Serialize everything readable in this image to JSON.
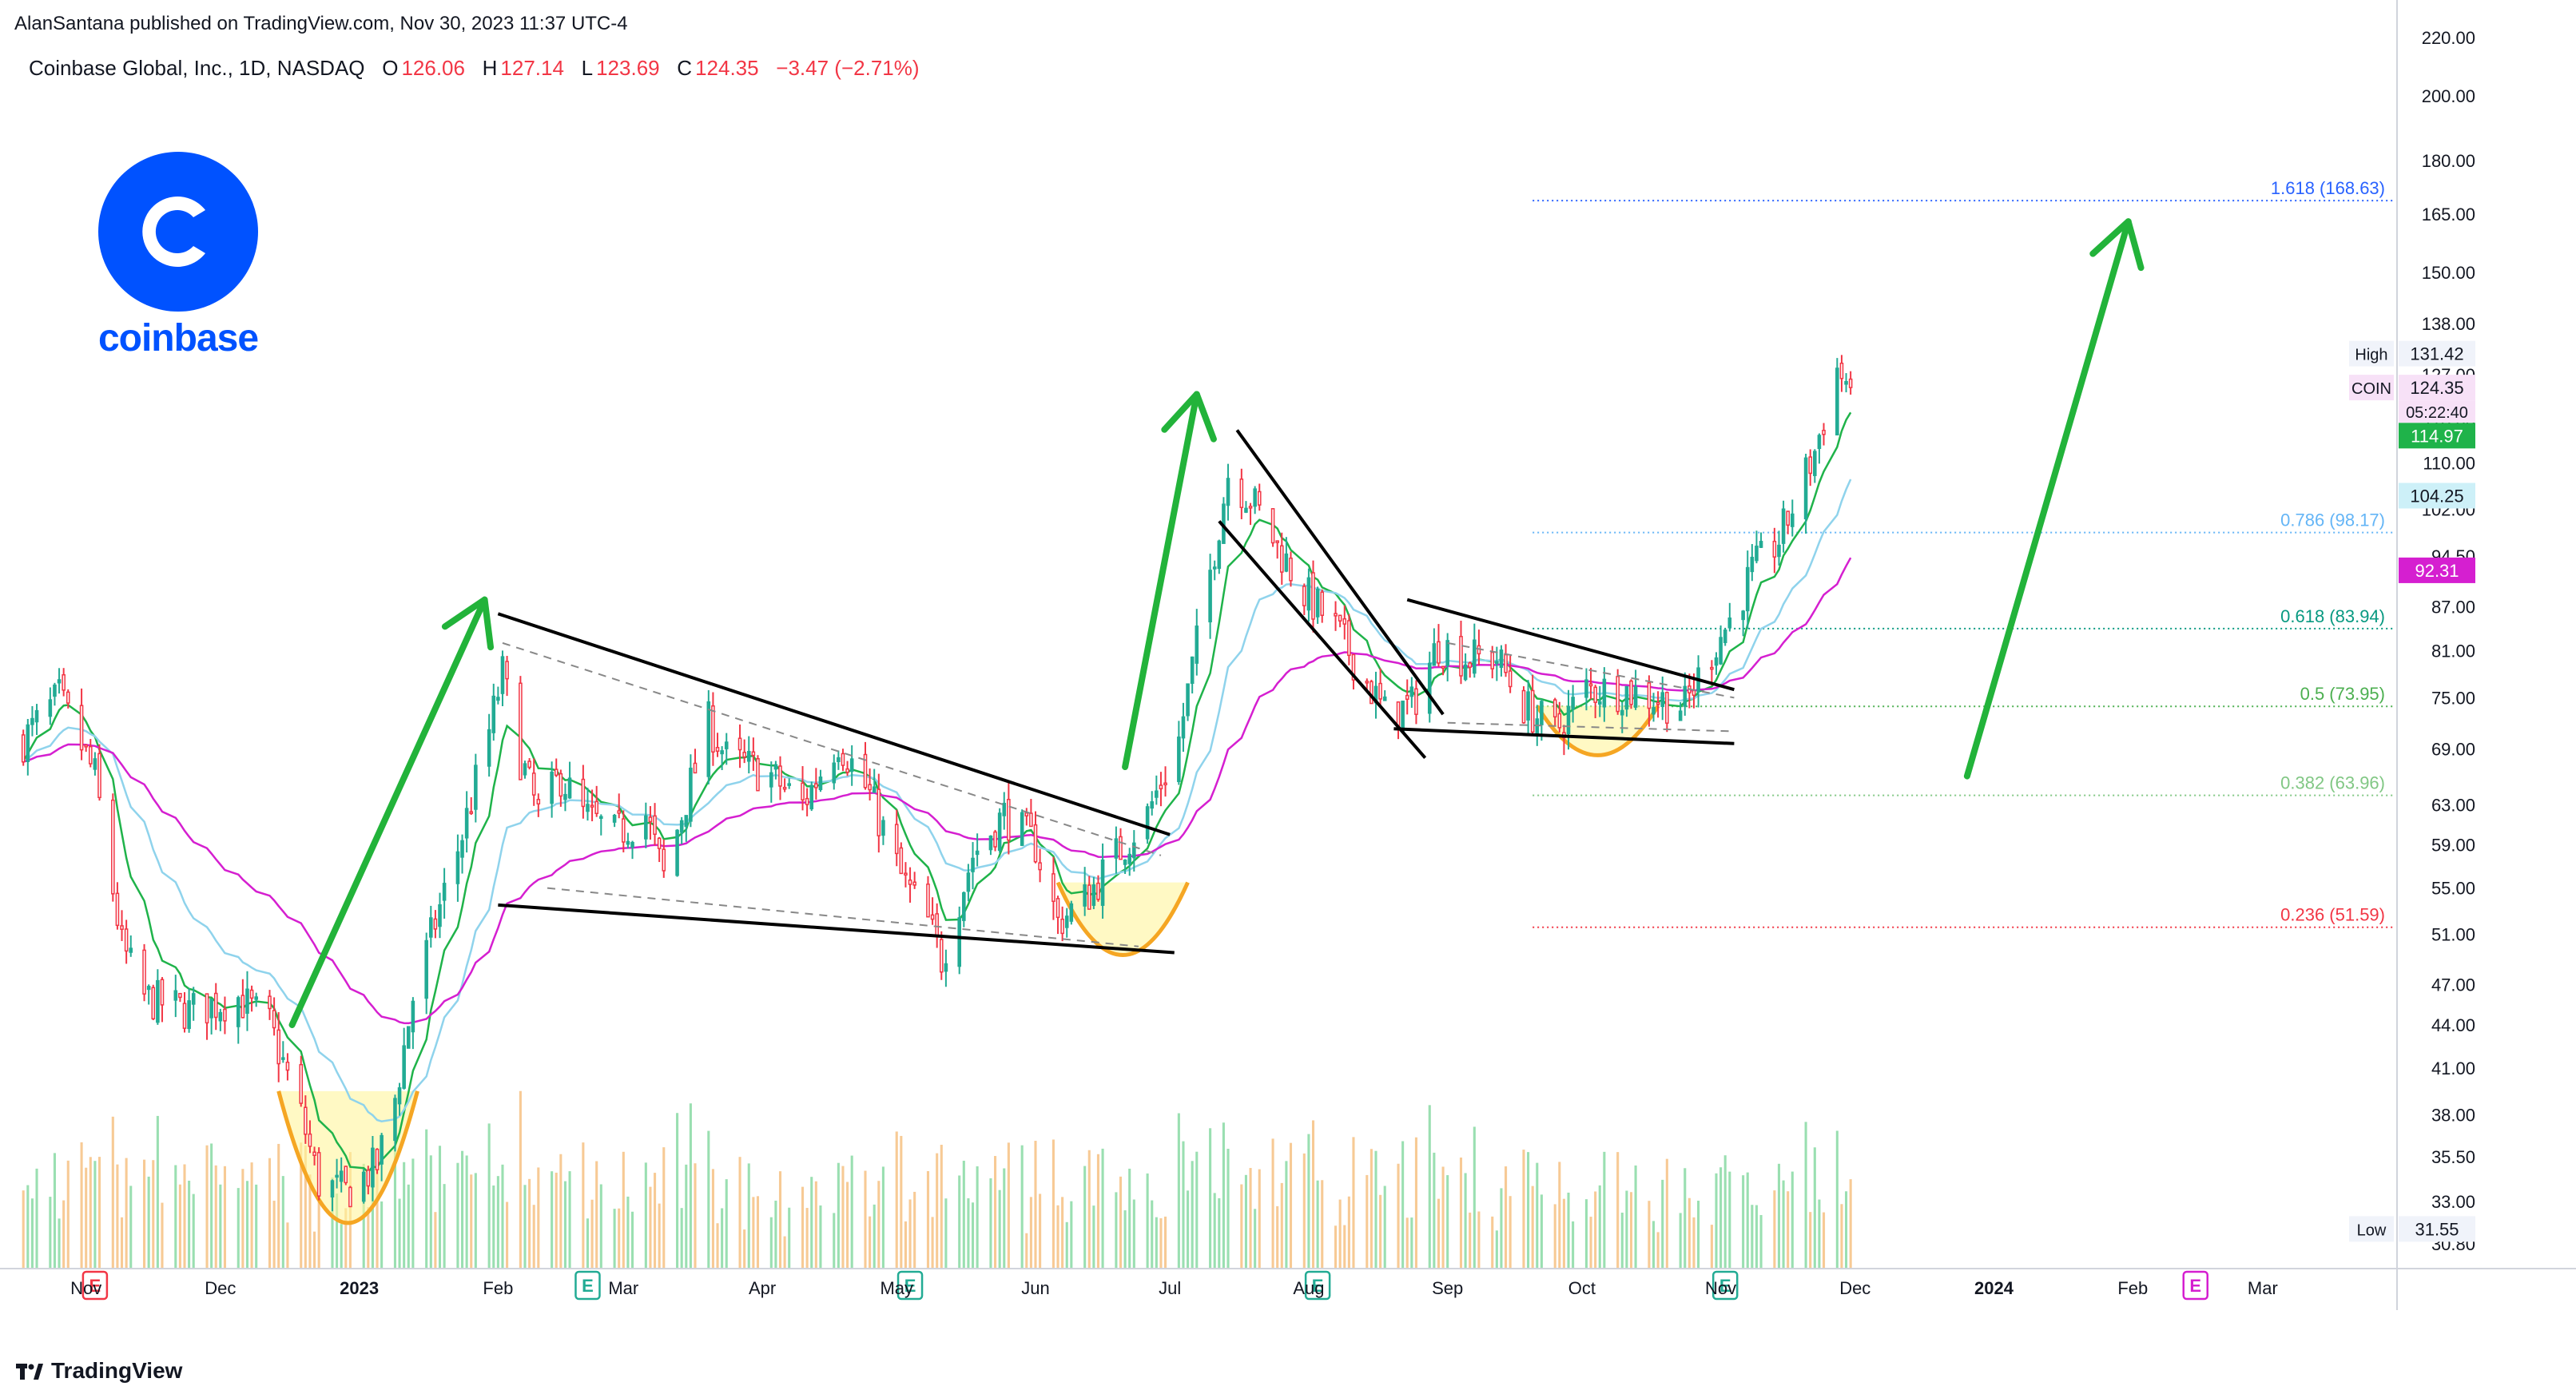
{
  "header": {
    "published": "AlanSantana published on TradingView.com, Nov 30, 2023 11:37 UTC-4",
    "symbol": "Coinbase Global, Inc., 1D, NASDAQ",
    "o_label": "O",
    "o_value": "126.06",
    "h_label": "H",
    "h_value": "127.14",
    "l_label": "L",
    "l_value": "123.69",
    "c_label": "C",
    "c_value": "124.35",
    "change": "−3.47 (−2.71%)"
  },
  "logo": {
    "wordmark": "coinbase",
    "icon": "coinbase-c-logo"
  },
  "footer": {
    "brand": "TradingView",
    "icon": "tradingview-logo-icon"
  },
  "colors": {
    "up": "#22ab94",
    "down": "#f23645",
    "ema_fast": "#1fb34a",
    "ema_mid": "#8fd3ec",
    "ema_slow": "#d51fd0",
    "arrow": "#22b33a",
    "brand": "#0052ff"
  },
  "chart_data": {
    "type": "candlestick",
    "symbol": "COIN",
    "title": "Coinbase Global, Inc., 1D, NASDAQ",
    "y_scale": "log",
    "ylim": [
      29.5,
      222
    ],
    "price_ticks": [
      220.0,
      200.0,
      180.0,
      165.0,
      150.0,
      138.0,
      127.0,
      118.0,
      110.0,
      102.0,
      94.5,
      87.0,
      81.0,
      75.0,
      69.0,
      63.0,
      59.0,
      55.0,
      51.0,
      47.0,
      44.0,
      41.0,
      38.0,
      35.5,
      33.0,
      30.8
    ],
    "price_tick_labels": [
      "220.00",
      "200.00",
      "180.00",
      "165.00",
      "150.00",
      "138.00",
      "127.00",
      "118.00",
      "110.00",
      "102.00",
      "94.50",
      "87.00",
      "81.00",
      "75.00",
      "69.00",
      "63.00",
      "59.00",
      "55.00",
      "51.00",
      "47.00",
      "44.00",
      "41.00",
      "38.00",
      "35.50",
      "33.00",
      "30.80"
    ],
    "time_ticks": [
      {
        "label": "Nov",
        "bold": false
      },
      {
        "label": "Dec",
        "bold": false
      },
      {
        "label": "2023",
        "bold": true
      },
      {
        "label": "Feb",
        "bold": false
      },
      {
        "label": "Mar",
        "bold": false
      },
      {
        "label": "Apr",
        "bold": false
      },
      {
        "label": "May",
        "bold": false
      },
      {
        "label": "Jun",
        "bold": false
      },
      {
        "label": "Jul",
        "bold": false
      },
      {
        "label": "Aug",
        "bold": false
      },
      {
        "label": "Sep",
        "bold": false
      },
      {
        "label": "Oct",
        "bold": false
      },
      {
        "label": "Nov",
        "bold": false
      },
      {
        "label": "Dec",
        "bold": false
      },
      {
        "label": "2024",
        "bold": true
      },
      {
        "label": "Feb",
        "bold": false
      },
      {
        "label": "Mar",
        "bold": false
      }
    ],
    "time_tick_dates": [
      "2022-11-01",
      "2022-12-01",
      "2023-01-01",
      "2023-02-01",
      "2023-03-01",
      "2023-04-01",
      "2023-05-01",
      "2023-06-01",
      "2023-07-01",
      "2023-08-01",
      "2023-09-01",
      "2023-10-01",
      "2023-11-01",
      "2023-12-01",
      "2024-01-01",
      "2024-02-01",
      "2024-03-01"
    ],
    "xlim": [
      "2022-10-16",
      "2024-03-31"
    ],
    "price_path": [
      [
        "2022-10-18",
        70
      ],
      [
        "2022-10-26",
        75
      ],
      [
        "2022-11-03",
        66
      ],
      [
        "2022-11-09",
        50
      ],
      [
        "2022-11-14",
        46
      ],
      [
        "2022-11-24",
        45
      ],
      [
        "2022-12-05",
        46
      ],
      [
        "2022-12-12",
        44
      ],
      [
        "2022-12-19",
        38
      ],
      [
        "2022-12-23",
        34
      ],
      [
        "2022-12-29",
        33.5
      ],
      [
        "2023-01-05",
        35
      ],
      [
        "2023-01-09",
        39
      ],
      [
        "2023-01-13",
        46
      ],
      [
        "2023-01-18",
        52
      ],
      [
        "2023-01-24",
        60
      ],
      [
        "2023-01-30",
        71
      ],
      [
        "2023-02-02",
        78
      ],
      [
        "2023-02-06",
        68
      ],
      [
        "2023-02-10",
        62
      ],
      [
        "2023-02-15",
        66
      ],
      [
        "2023-02-20",
        62
      ],
      [
        "2023-02-27",
        60
      ],
      [
        "2023-03-06",
        62
      ],
      [
        "2023-03-10",
        56
      ],
      [
        "2023-03-14",
        62
      ],
      [
        "2023-03-20",
        72
      ],
      [
        "2023-03-24",
        68
      ],
      [
        "2023-04-03",
        66
      ],
      [
        "2023-04-10",
        63
      ],
      [
        "2023-04-18",
        70
      ],
      [
        "2023-04-25",
        64
      ],
      [
        "2023-05-02",
        56
      ],
      [
        "2023-05-08",
        52
      ],
      [
        "2023-05-11",
        49
      ],
      [
        "2023-05-18",
        58
      ],
      [
        "2023-05-25",
        62
      ],
      [
        "2023-06-01",
        59
      ],
      [
        "2023-06-06",
        52
      ],
      [
        "2023-06-12",
        54
      ],
      [
        "2023-06-19",
        58
      ],
      [
        "2023-06-26",
        62
      ],
      [
        "2023-07-03",
        70
      ],
      [
        "2023-07-10",
        92
      ],
      [
        "2023-07-14",
        108
      ],
      [
        "2023-07-19",
        104
      ],
      [
        "2023-07-25",
        96
      ],
      [
        "2023-07-31",
        89
      ],
      [
        "2023-08-07",
        84
      ],
      [
        "2023-08-14",
        77
      ],
      [
        "2023-08-18",
        73
      ],
      [
        "2023-08-24",
        74
      ],
      [
        "2023-08-30",
        82
      ],
      [
        "2023-09-05",
        80
      ],
      [
        "2023-09-12",
        80
      ],
      [
        "2023-09-18",
        74
      ],
      [
        "2023-09-25",
        71
      ],
      [
        "2023-10-02",
        76
      ],
      [
        "2023-10-10",
        76
      ],
      [
        "2023-10-17",
        75
      ],
      [
        "2023-10-24",
        74
      ],
      [
        "2023-10-30",
        81
      ],
      [
        "2023-11-03",
        85
      ],
      [
        "2023-11-08",
        92
      ],
      [
        "2023-11-14",
        97
      ],
      [
        "2023-11-18",
        104
      ],
      [
        "2023-11-22",
        112
      ],
      [
        "2023-11-27",
        128
      ],
      [
        "2023-11-30",
        124.35
      ]
    ],
    "series": [
      {
        "name": "COIN",
        "last_value": "124.35"
      }
    ],
    "countdown": "05:22:40",
    "price_labels": [
      {
        "text": "High",
        "value": "131.42",
        "price": 131.42,
        "style": "plain"
      },
      {
        "text": "COIN",
        "value": "124.35",
        "price": 124.35,
        "style": "symbol"
      },
      {
        "text": "",
        "value": "114.97",
        "price": 114.97,
        "style": "green"
      },
      {
        "text": "",
        "value": "104.25",
        "price": 104.25,
        "style": "cyan"
      },
      {
        "text": "",
        "value": "92.31",
        "price": 92.31,
        "style": "magenta"
      },
      {
        "text": "Low",
        "value": "31.55",
        "price": 31.55,
        "style": "plain"
      }
    ],
    "fibonacci": [
      {
        "label": "1.618 (168.63)",
        "price": 168.63,
        "color": "#2962ff"
      },
      {
        "label": "0.786 (98.17)",
        "price": 98.17,
        "color": "#64b5f6"
      },
      {
        "label": "0.618 (83.94)",
        "price": 83.94,
        "color": "#089981"
      },
      {
        "label": "0.5 (73.95)",
        "price": 73.95,
        "color": "#4caf50"
      },
      {
        "label": "0.382 (63.96)",
        "price": 63.96,
        "color": "#81c784"
      },
      {
        "label": "0.236 (51.59)",
        "price": 51.59,
        "color": "#f23645"
      }
    ],
    "fib_start": "2023-09-20",
    "earnings_markers": [
      {
        "label": "E",
        "date": "2022-11-03",
        "color": "#f23645"
      },
      {
        "label": "E",
        "date": "2023-02-21",
        "color": "#22ab94"
      },
      {
        "label": "E",
        "date": "2023-05-04",
        "color": "#22ab94"
      },
      {
        "label": "E",
        "date": "2023-08-03",
        "color": "#22ab94"
      },
      {
        "label": "E",
        "date": "2023-11-02",
        "color": "#22ab94"
      },
      {
        "label": "E",
        "date": "2024-02-15",
        "color": "#d51fd0"
      }
    ],
    "trendlines": [
      {
        "from": [
          "2023-02-01",
          86
        ],
        "to": [
          "2023-07-01",
          60
        ]
      },
      {
        "from": [
          "2023-02-01",
          53.5
        ],
        "to": [
          "2023-07-02",
          49.5
        ]
      },
      {
        "from": [
          "2023-07-16",
          116
        ],
        "to": [
          "2023-08-31",
          73
        ]
      },
      {
        "from": [
          "2023-07-12",
          100
        ],
        "to": [
          "2023-08-27",
          68
        ]
      },
      {
        "from": [
          "2023-08-23",
          88
        ],
        "to": [
          "2023-11-04",
          76
        ]
      },
      {
        "from": [
          "2023-08-20",
          71.3
        ],
        "to": [
          "2023-11-04",
          69.6
        ]
      }
    ],
    "dashed_lines": [
      {
        "from": [
          "2023-02-02",
          82
        ],
        "to": [
          "2023-06-29",
          58
        ]
      },
      {
        "from": [
          "2023-02-12",
          55
        ],
        "to": [
          "2023-06-24",
          50
        ]
      },
      {
        "from": [
          "2023-09-01",
          82
        ],
        "to": [
          "2023-11-04",
          75
        ]
      },
      {
        "from": [
          "2023-09-01",
          72
        ],
        "to": [
          "2023-11-04",
          71
        ]
      }
    ],
    "arrows": [
      {
        "from": [
          "2022-12-17",
          44
        ],
        "to": [
          "2023-01-29",
          88
        ]
      },
      {
        "from": [
          "2023-06-21",
          67
        ],
        "to": [
          "2023-07-07",
          123
        ]
      },
      {
        "from": [
          "2023-12-26",
          66
        ],
        "to": [
          "2024-01-31",
          163
        ]
      }
    ],
    "cup_patterns": [
      {
        "from": [
          "2022-12-14",
          39.5
        ],
        "to": [
          "2023-01-14",
          39.5
        ],
        "bottom": 31.5
      },
      {
        "from": [
          "2023-06-06",
          55.5
        ],
        "to": [
          "2023-07-05",
          55.5
        ],
        "bottom": 49
      },
      {
        "from": [
          "2023-09-21",
          74
        ],
        "to": [
          "2023-10-18",
          74
        ],
        "bottom": 68
      }
    ]
  }
}
